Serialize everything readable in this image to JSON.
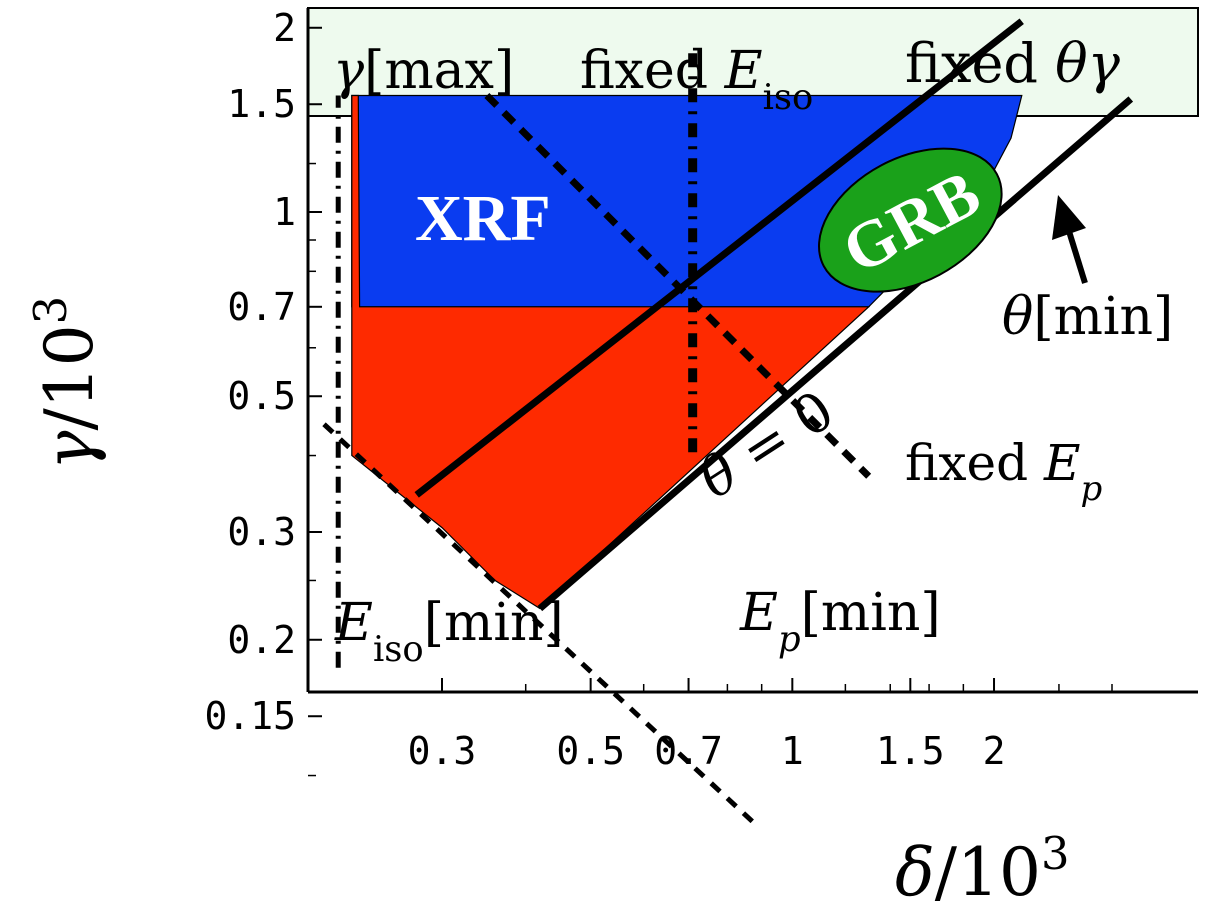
{
  "chart_data": {
    "type": "area",
    "title": "",
    "xlabel": "δ/10",
    "xlabel_exp": "3",
    "ylabel": "γ/10",
    "ylabel_exp": "3",
    "x_scale": "log",
    "y_scale": "log",
    "xlim": [
      0.2,
      3.2
    ],
    "ylim": [
      0.1,
      2.55
    ],
    "x_ticks": [
      {
        "value": 0.3,
        "label": "0.3"
      },
      {
        "value": 0.5,
        "label": "0.5"
      },
      {
        "value": 0.7,
        "label": "0.7"
      },
      {
        "value": 1.0,
        "label": "1"
      },
      {
        "value": 1.5,
        "label": "1.5"
      },
      {
        "value": 2.0,
        "label": "2"
      }
    ],
    "y_ticks": [
      {
        "value": 0.15,
        "label": "0.15"
      },
      {
        "value": 0.2,
        "label": "0.2"
      },
      {
        "value": 0.3,
        "label": "0.3"
      },
      {
        "value": 0.5,
        "label": "0.5"
      },
      {
        "value": 0.7,
        "label": "0.7"
      },
      {
        "value": 1.0,
        "label": "1"
      },
      {
        "value": 1.5,
        "label": "1.5"
      },
      {
        "value": 2.0,
        "label": "2"
      }
    ],
    "gamma_max": 1.55,
    "regions": [
      {
        "name": "XRF",
        "color": "#0a3cf0",
        "polygon": [
          [
            0.22,
            0.7
          ],
          [
            0.22,
            1.55
          ],
          [
            2.2,
            1.55
          ],
          [
            2.12,
            1.32
          ],
          [
            2.0,
            1.17
          ],
          [
            1.9,
            1.08
          ],
          [
            1.5,
            0.82
          ],
          [
            1.3,
            0.7
          ]
        ]
      },
      {
        "name": "red-region",
        "color": "#fe2a00",
        "polygon": [
          [
            0.22,
            0.4
          ],
          [
            0.22,
            1.55
          ],
          [
            0.225,
            1.55
          ],
          [
            0.226,
            0.7
          ],
          [
            1.3,
            0.7
          ],
          [
            0.42,
            0.225
          ],
          [
            0.36,
            0.25
          ],
          [
            0.3,
            0.305
          ],
          [
            0.22,
            0.4
          ]
        ]
      }
    ],
    "grb_ellipse": {
      "label": "GRB",
      "center": [
        1.5,
        0.97
      ],
      "color": "#1aa11a"
    },
    "lines": [
      {
        "name": "fixed θγ",
        "style": "solid",
        "points": [
          [
            0.275,
            0.345
          ],
          [
            2.2,
            2.05
          ]
        ]
      },
      {
        "name": "θ = 0",
        "style": "solid",
        "points": [
          [
            0.42,
            0.225
          ],
          [
            3.2,
            1.53
          ]
        ]
      },
      {
        "name": "fixed E_iso",
        "style": "dashdot",
        "points": [
          [
            0.71,
            0.405
          ],
          [
            0.71,
            1.87
          ]
        ]
      },
      {
        "name": "E_iso[min]",
        "style": "dashdot",
        "points": [
          [
            0.21,
            0.18
          ],
          [
            0.21,
            1.55
          ]
        ]
      },
      {
        "name": "fixed E_p",
        "style": "dashed",
        "points": [
          [
            0.35,
            1.55
          ],
          [
            1.3,
            0.37
          ]
        ]
      },
      {
        "name": "E_p[min]",
        "style": "dashed",
        "points": [
          [
            0.2,
            0.45
          ],
          [
            0.88,
            0.1
          ]
        ]
      }
    ],
    "annotations": {
      "gamma_max": {
        "text": "γ",
        "suffix": "[max]"
      },
      "fixed_e_iso": {
        "prefix": "fixed ",
        "text": "E",
        "sub": "iso"
      },
      "fixed_theta_gamma": {
        "prefix": "fixed ",
        "text": "θγ"
      },
      "xrf": "XRF",
      "grb": "GRB",
      "theta_min": {
        "text": "θ",
        "suffix": "[min]"
      },
      "theta_zero": {
        "text": "θ",
        "suffix": " = 0"
      },
      "fixed_e_p": {
        "prefix": "fixed ",
        "text": "E",
        "sub": "p"
      },
      "e_iso_min": {
        "text": "E",
        "sub": "iso",
        "suffix": "[min]"
      },
      "e_p_min": {
        "text": "E",
        "sub": "p",
        "suffix": "[min]"
      }
    },
    "colors": {
      "band": "#eefaee",
      "xrf": "#0a3cf0",
      "red": "#fe2a00",
      "grb": "#1aa11a"
    }
  }
}
